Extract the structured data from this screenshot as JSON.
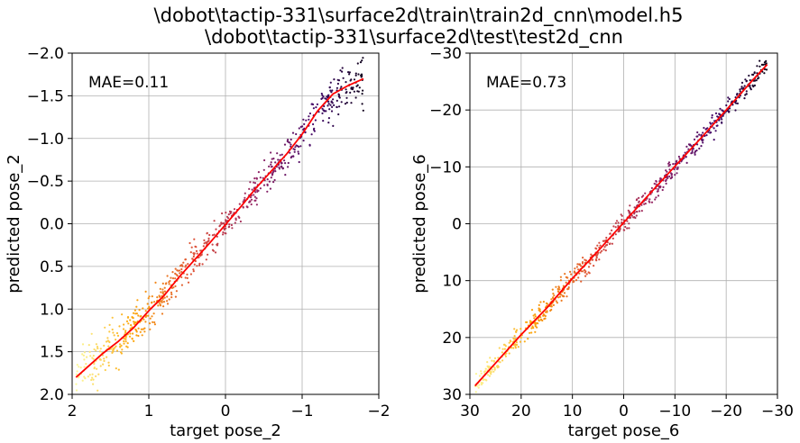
{
  "figure": {
    "title_lines": [
      "\\dobot\\tactip-331\\surface2d\\train\\train2d_cnn\\model.h5",
      "\\dobot\\tactip-331\\surface2d\\test\\test2d_cnn"
    ]
  },
  "chart_data": [
    {
      "type": "scatter",
      "xlabel": "target pose_2",
      "ylabel": "predicted pose_2",
      "annotation": "MAE=0.11",
      "xlim": [
        2,
        -2
      ],
      "ylim": [
        2,
        -2
      ],
      "xticks": [
        2,
        1,
        0,
        -1,
        -2
      ],
      "xtick_labels": [
        "2",
        "1",
        "0",
        "−1",
        "−2"
      ],
      "yticks": [
        -2.0,
        -1.5,
        -1.0,
        -0.5,
        0.0,
        0.5,
        1.0,
        1.5,
        2.0
      ],
      "ytick_labels": [
        "−2.0",
        "−1.5",
        "−1.0",
        "−0.5",
        "0.0",
        "0.5",
        "1.0",
        "1.5",
        "2.0"
      ],
      "grid": true,
      "colormap": "inferno",
      "trend_color": "#ff0000",
      "trend_line": {
        "x": [
          1.95,
          1.8,
          1.6,
          1.4,
          1.2,
          1.0,
          0.8,
          0.6,
          0.4,
          0.2,
          0.0,
          -0.2,
          -0.4,
          -0.6,
          -0.8,
          -1.0,
          -1.2,
          -1.4,
          -1.6,
          -1.8
        ],
        "y": [
          1.8,
          1.68,
          1.52,
          1.38,
          1.22,
          1.02,
          0.84,
          0.62,
          0.42,
          0.22,
          0.01,
          -0.2,
          -0.42,
          -0.62,
          -0.82,
          -1.05,
          -1.32,
          -1.52,
          -1.62,
          -1.7
        ]
      },
      "scatter_spread": 0.12,
      "scatter_count": 700
    },
    {
      "type": "scatter",
      "xlabel": "target pose_6",
      "ylabel": "predicted pose_6",
      "annotation": "MAE=0.73",
      "xlim": [
        30,
        -30
      ],
      "ylim": [
        30,
        -30
      ],
      "xticks": [
        30,
        20,
        10,
        0,
        -10,
        -20,
        -30
      ],
      "xtick_labels": [
        "30",
        "20",
        "10",
        "0",
        "−10",
        "−20",
        "−30"
      ],
      "yticks": [
        -30,
        -20,
        -10,
        0,
        10,
        20,
        30
      ],
      "ytick_labels": [
        "−30",
        "−20",
        "−10",
        "0",
        "10",
        "20",
        "30"
      ],
      "grid": true,
      "colormap": "inferno",
      "trend_color": "#ff0000",
      "trend_line": {
        "x": [
          29,
          25,
          20,
          15,
          10,
          5,
          0,
          -5,
          -10,
          -15,
          -20,
          -25,
          -28
        ],
        "y": [
          28.5,
          24.5,
          19.5,
          14.8,
          9.6,
          4.8,
          -0.2,
          -5.2,
          -10.1,
          -15.0,
          -20.0,
          -25.1,
          -28.0
        ]
      },
      "scatter_spread": 0.9,
      "scatter_count": 700
    }
  ]
}
